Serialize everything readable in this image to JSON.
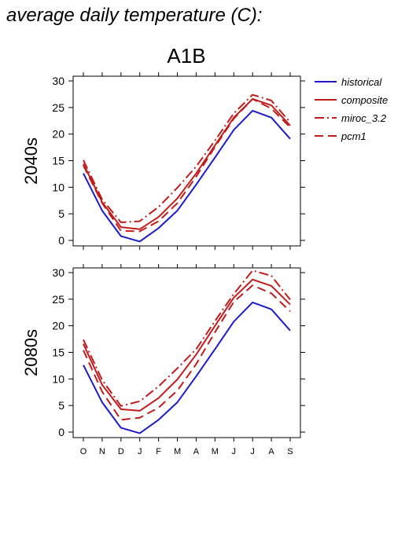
{
  "page_title": "average daily temperature (C):",
  "scenario_title": "A1B",
  "chart_data": {
    "type": "line",
    "categories": [
      "O",
      "N",
      "D",
      "J",
      "F",
      "M",
      "A",
      "M",
      "J",
      "J",
      "A",
      "S"
    ],
    "ylim": [
      0,
      30
    ],
    "yticks": [
      0,
      5,
      10,
      15,
      20,
      25,
      30
    ],
    "grid": false,
    "legend_position": "top-right",
    "colors": {
      "historical": "#1c1cc8",
      "models": "#c01c1c"
    },
    "legend": [
      {
        "name": "historical",
        "style": "solid",
        "color": "#1c1cc8"
      },
      {
        "name": "composite",
        "style": "solid",
        "color": "#c01c1c"
      },
      {
        "name": "miroc_3.2",
        "style": "dashdot",
        "color": "#c01c1c"
      },
      {
        "name": "pcm1",
        "style": "dashed",
        "color": "#c01c1c"
      }
    ],
    "panels": [
      {
        "label": "2040s",
        "series": [
          {
            "name": "historical",
            "values": [
              12.6,
              5.6,
              0.8,
              -0.2,
              2.3,
              5.6,
              10.5,
              15.6,
              20.8,
              24.4,
              23.1,
              19.1
            ]
          },
          {
            "name": "composite",
            "values": [
              14.4,
              7.2,
              2.5,
              2.1,
              4.4,
              7.9,
              12.6,
              17.9,
              23.1,
              26.6,
              25.4,
              21.6
            ]
          },
          {
            "name": "miroc_3.2",
            "values": [
              15.1,
              7.7,
              3.4,
              3.6,
              6.3,
              9.9,
              13.9,
              18.8,
              23.9,
              27.4,
              26.3,
              22.2
            ]
          },
          {
            "name": "pcm1",
            "values": [
              14.1,
              7.0,
              1.8,
              1.7,
              3.6,
              7.0,
              12.0,
              17.6,
              22.9,
              26.6,
              24.8,
              21.3
            ]
          }
        ]
      },
      {
        "label": "2080s",
        "series": [
          {
            "name": "historical",
            "values": [
              12.6,
              5.6,
              0.8,
              -0.2,
              2.3,
              5.6,
              10.5,
              15.6,
              20.8,
              24.4,
              23.1,
              19.1
            ]
          },
          {
            "name": "composite",
            "values": [
              16.6,
              8.9,
              4.3,
              4.0,
              6.4,
              9.9,
              14.6,
              20.0,
              25.3,
              28.7,
              27.5,
              24.0
            ]
          },
          {
            "name": "miroc_3.2",
            "values": [
              17.4,
              9.8,
              4.9,
              5.8,
              8.6,
              12.0,
              15.6,
              20.9,
              26.0,
              30.4,
              29.4,
              24.9
            ]
          },
          {
            "name": "pcm1",
            "values": [
              15.4,
              7.6,
              2.3,
              2.7,
              4.6,
              7.8,
              12.8,
              18.8,
              24.5,
              27.6,
              26.1,
              22.7
            ]
          }
        ]
      }
    ]
  }
}
